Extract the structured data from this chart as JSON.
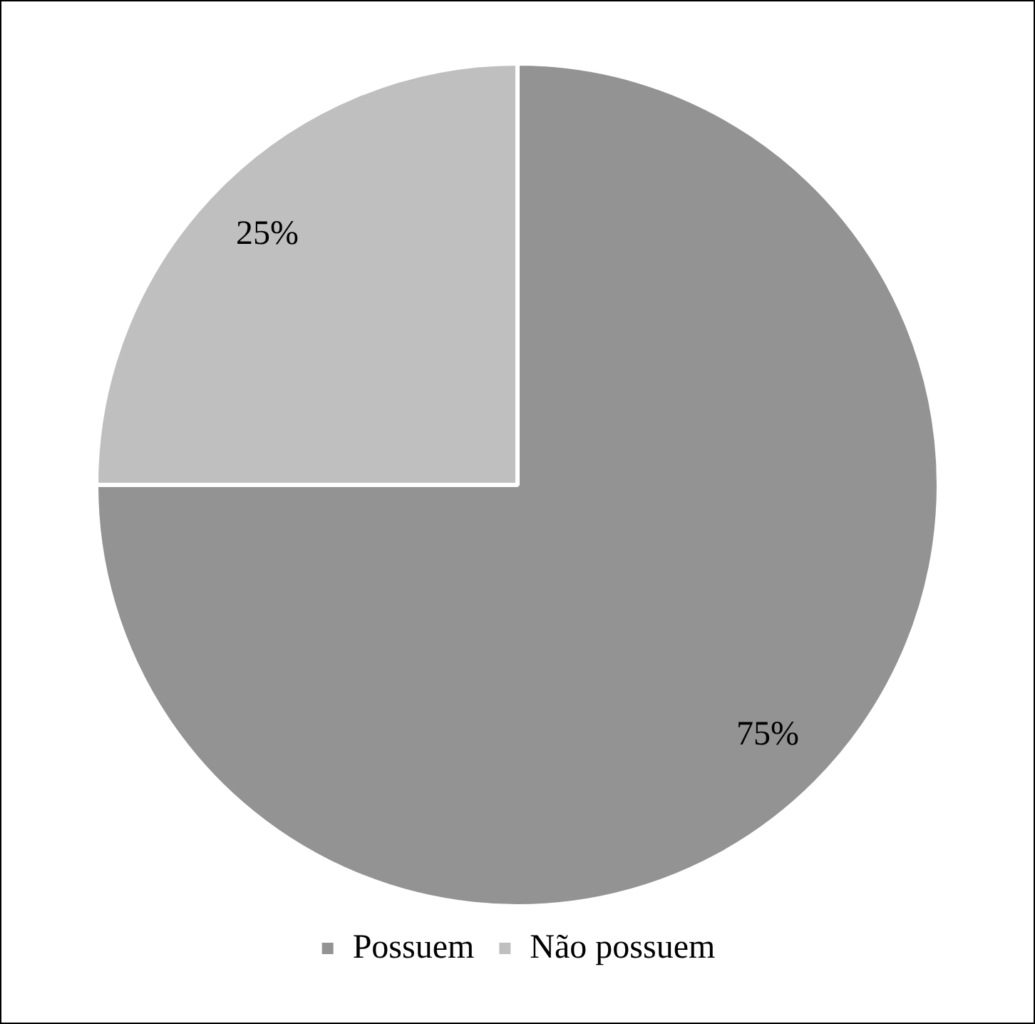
{
  "chart_data": {
    "type": "pie",
    "categories": [
      "Possuem",
      "Não possuem"
    ],
    "values": [
      75,
      25
    ],
    "colors": [
      "#939393",
      "#bfbfbf"
    ],
    "value_labels": [
      "75%",
      "25%"
    ],
    "legend": "bottom"
  }
}
